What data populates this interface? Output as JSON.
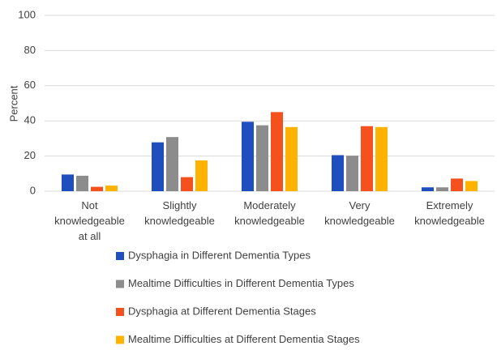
{
  "chart_data": {
    "type": "bar",
    "y_label": "Percent",
    "categories": [
      "Not\nknowledgeable\nat all",
      "Slightly\nknowledgeable",
      "Moderately\nknowledgeable",
      "Very\nknowledgeable",
      "Extremely\nknowledgeable"
    ],
    "series": [
      {
        "name": "Dysphagia in Different Dementia Types",
        "color": "#1f4fbf",
        "values": [
          9.5,
          27.8,
          39.5,
          20.5,
          2.2
        ]
      },
      {
        "name": "Mealtime Difficulties in Different Dementia Types",
        "color": "#8c8c8c",
        "values": [
          8.8,
          30.8,
          37.5,
          20.2,
          2.2
        ]
      },
      {
        "name": "Dysphagia at Different Dementia Stages",
        "color": "#f4511e",
        "values": [
          2.5,
          8,
          45,
          37,
          7.2
        ]
      },
      {
        "name": "Mealtime Difficulties at Different Dementia Stages",
        "color": "#ffb300",
        "values": [
          3.2,
          17.5,
          36.5,
          36.5,
          5.8
        ]
      }
    ],
    "ylim": [
      0,
      100
    ],
    "yticks": [
      0,
      20,
      40,
      60,
      80,
      100
    ],
    "grid": true
  }
}
